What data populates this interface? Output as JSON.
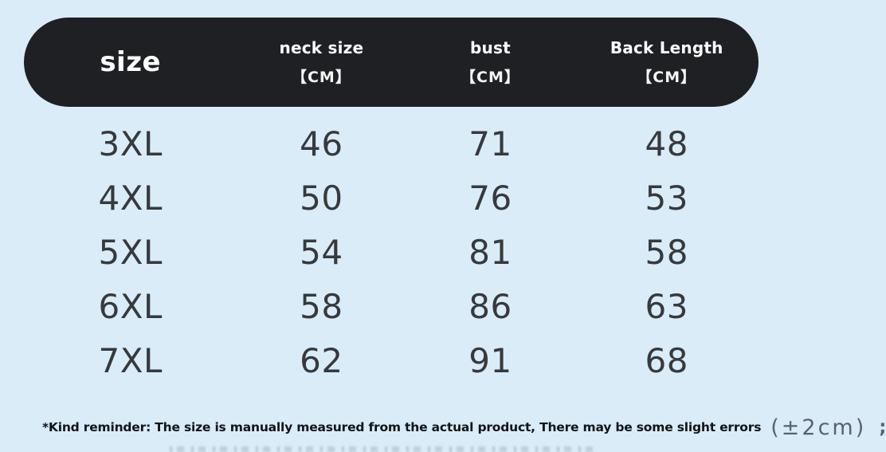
{
  "chart_data": {
    "type": "table",
    "columns": [
      {
        "label": "size",
        "unit": ""
      },
      {
        "label": "neck size",
        "unit": "【CM】"
      },
      {
        "label": "bust",
        "unit": "【CM】"
      },
      {
        "label": "Back Length",
        "unit": "【CM】"
      }
    ],
    "rows": [
      [
        "3XL",
        "46",
        "71",
        "48"
      ],
      [
        "4XL",
        "50",
        "76",
        "53"
      ],
      [
        "5XL",
        "54",
        "81",
        "58"
      ],
      [
        "6XL",
        "58",
        "86",
        "63"
      ],
      [
        "7XL",
        "62",
        "91",
        "68"
      ]
    ]
  },
  "footer": {
    "note": "*Kind reminder: The size is manually measured from the actual product, There may be some slight errors",
    "tolerance": "(±2cm)",
    "separator": ";"
  },
  "colors": {
    "background": "#d9ecf8",
    "header_background": "#1f2023",
    "header_text": "#ffffff",
    "body_text": "#37393c",
    "note_text": "#121416",
    "tolerance_text": "#58636d"
  }
}
